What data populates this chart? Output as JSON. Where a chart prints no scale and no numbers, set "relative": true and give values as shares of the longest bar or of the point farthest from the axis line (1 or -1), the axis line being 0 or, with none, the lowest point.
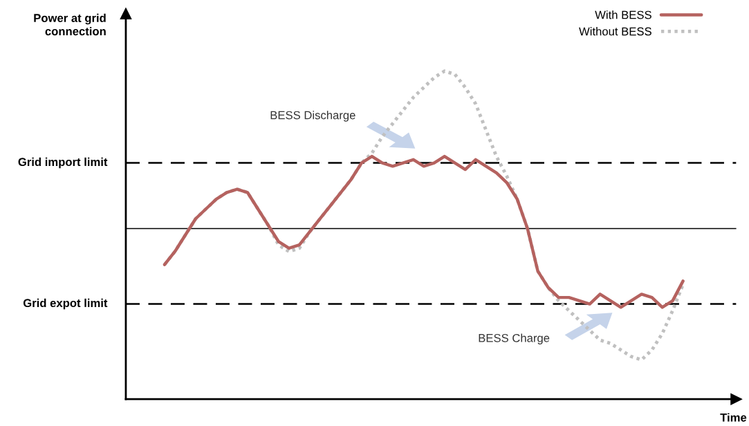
{
  "chart_data": {
    "type": "line",
    "relative": true,
    "xlabel": "Time",
    "legend": "top right",
    "marker": "none",
    "categories": [
      null,
      null,
      null,
      null,
      null,
      null,
      null,
      null,
      null,
      null,
      null,
      null,
      null,
      null,
      null,
      null,
      null,
      null,
      null,
      null,
      null,
      null,
      null,
      null,
      null,
      null,
      null,
      null,
      null,
      null,
      null,
      null,
      null,
      null,
      null,
      null,
      null,
      null,
      null,
      null,
      null,
      null,
      null,
      null,
      null,
      null,
      null,
      null,
      null,
      null,
      null
    ],
    "series": [
      {
        "name": "With BESS",
        "color": "#b5625f",
        "line_style": "solid",
        "values": [
          0.41,
          0.45,
          0.5,
          0.55,
          0.58,
          0.61,
          0.63,
          0.64,
          0.63,
          0.58,
          0.53,
          0.48,
          0.46,
          0.47,
          0.51,
          0.55,
          0.59,
          0.63,
          0.67,
          0.72,
          0.74,
          0.72,
          0.71,
          0.72,
          0.73,
          0.71,
          0.72,
          0.74,
          0.72,
          0.7,
          0.73,
          0.71,
          0.69,
          0.66,
          0.61,
          0.52,
          0.39,
          0.34,
          0.31,
          0.31,
          0.3,
          0.29,
          0.32,
          0.3,
          0.28,
          0.3,
          0.32,
          0.31,
          0.28,
          0.3,
          0.36
        ]
      },
      {
        "name": "Without BESS",
        "color": "#c0c0c0",
        "line_style": "dotted",
        "values": [
          0.41,
          0.45,
          0.5,
          0.55,
          0.58,
          0.61,
          0.63,
          0.64,
          0.63,
          0.58,
          0.53,
          0.47,
          0.45,
          0.46,
          0.51,
          0.55,
          0.59,
          0.63,
          0.67,
          0.72,
          0.75,
          0.8,
          0.84,
          0.88,
          0.92,
          0.95,
          0.98,
          1.0,
          0.99,
          0.95,
          0.9,
          0.82,
          0.74,
          0.68,
          0.61,
          0.52,
          0.39,
          0.34,
          0.3,
          0.27,
          0.24,
          0.21,
          0.18,
          0.17,
          0.15,
          0.13,
          0.12,
          0.15,
          0.2,
          0.27,
          0.35
        ]
      }
    ],
    "ref_lines": [
      {
        "axis": "y",
        "value": 0.72,
        "label": "Grid import limit",
        "color": "#000000",
        "line_style": "dashed"
      },
      {
        "axis": "y",
        "value": 0.52,
        "label": null,
        "color": "#000000",
        "line_style": "solid"
      },
      {
        "axis": "y",
        "value": 0.29,
        "label": "Grid expot limit",
        "color": "#000000",
        "line_style": "dashed"
      }
    ],
    "annotations": [
      "Power at grid connection",
      "BESS Discharge",
      "BESS Charge"
    ]
  }
}
